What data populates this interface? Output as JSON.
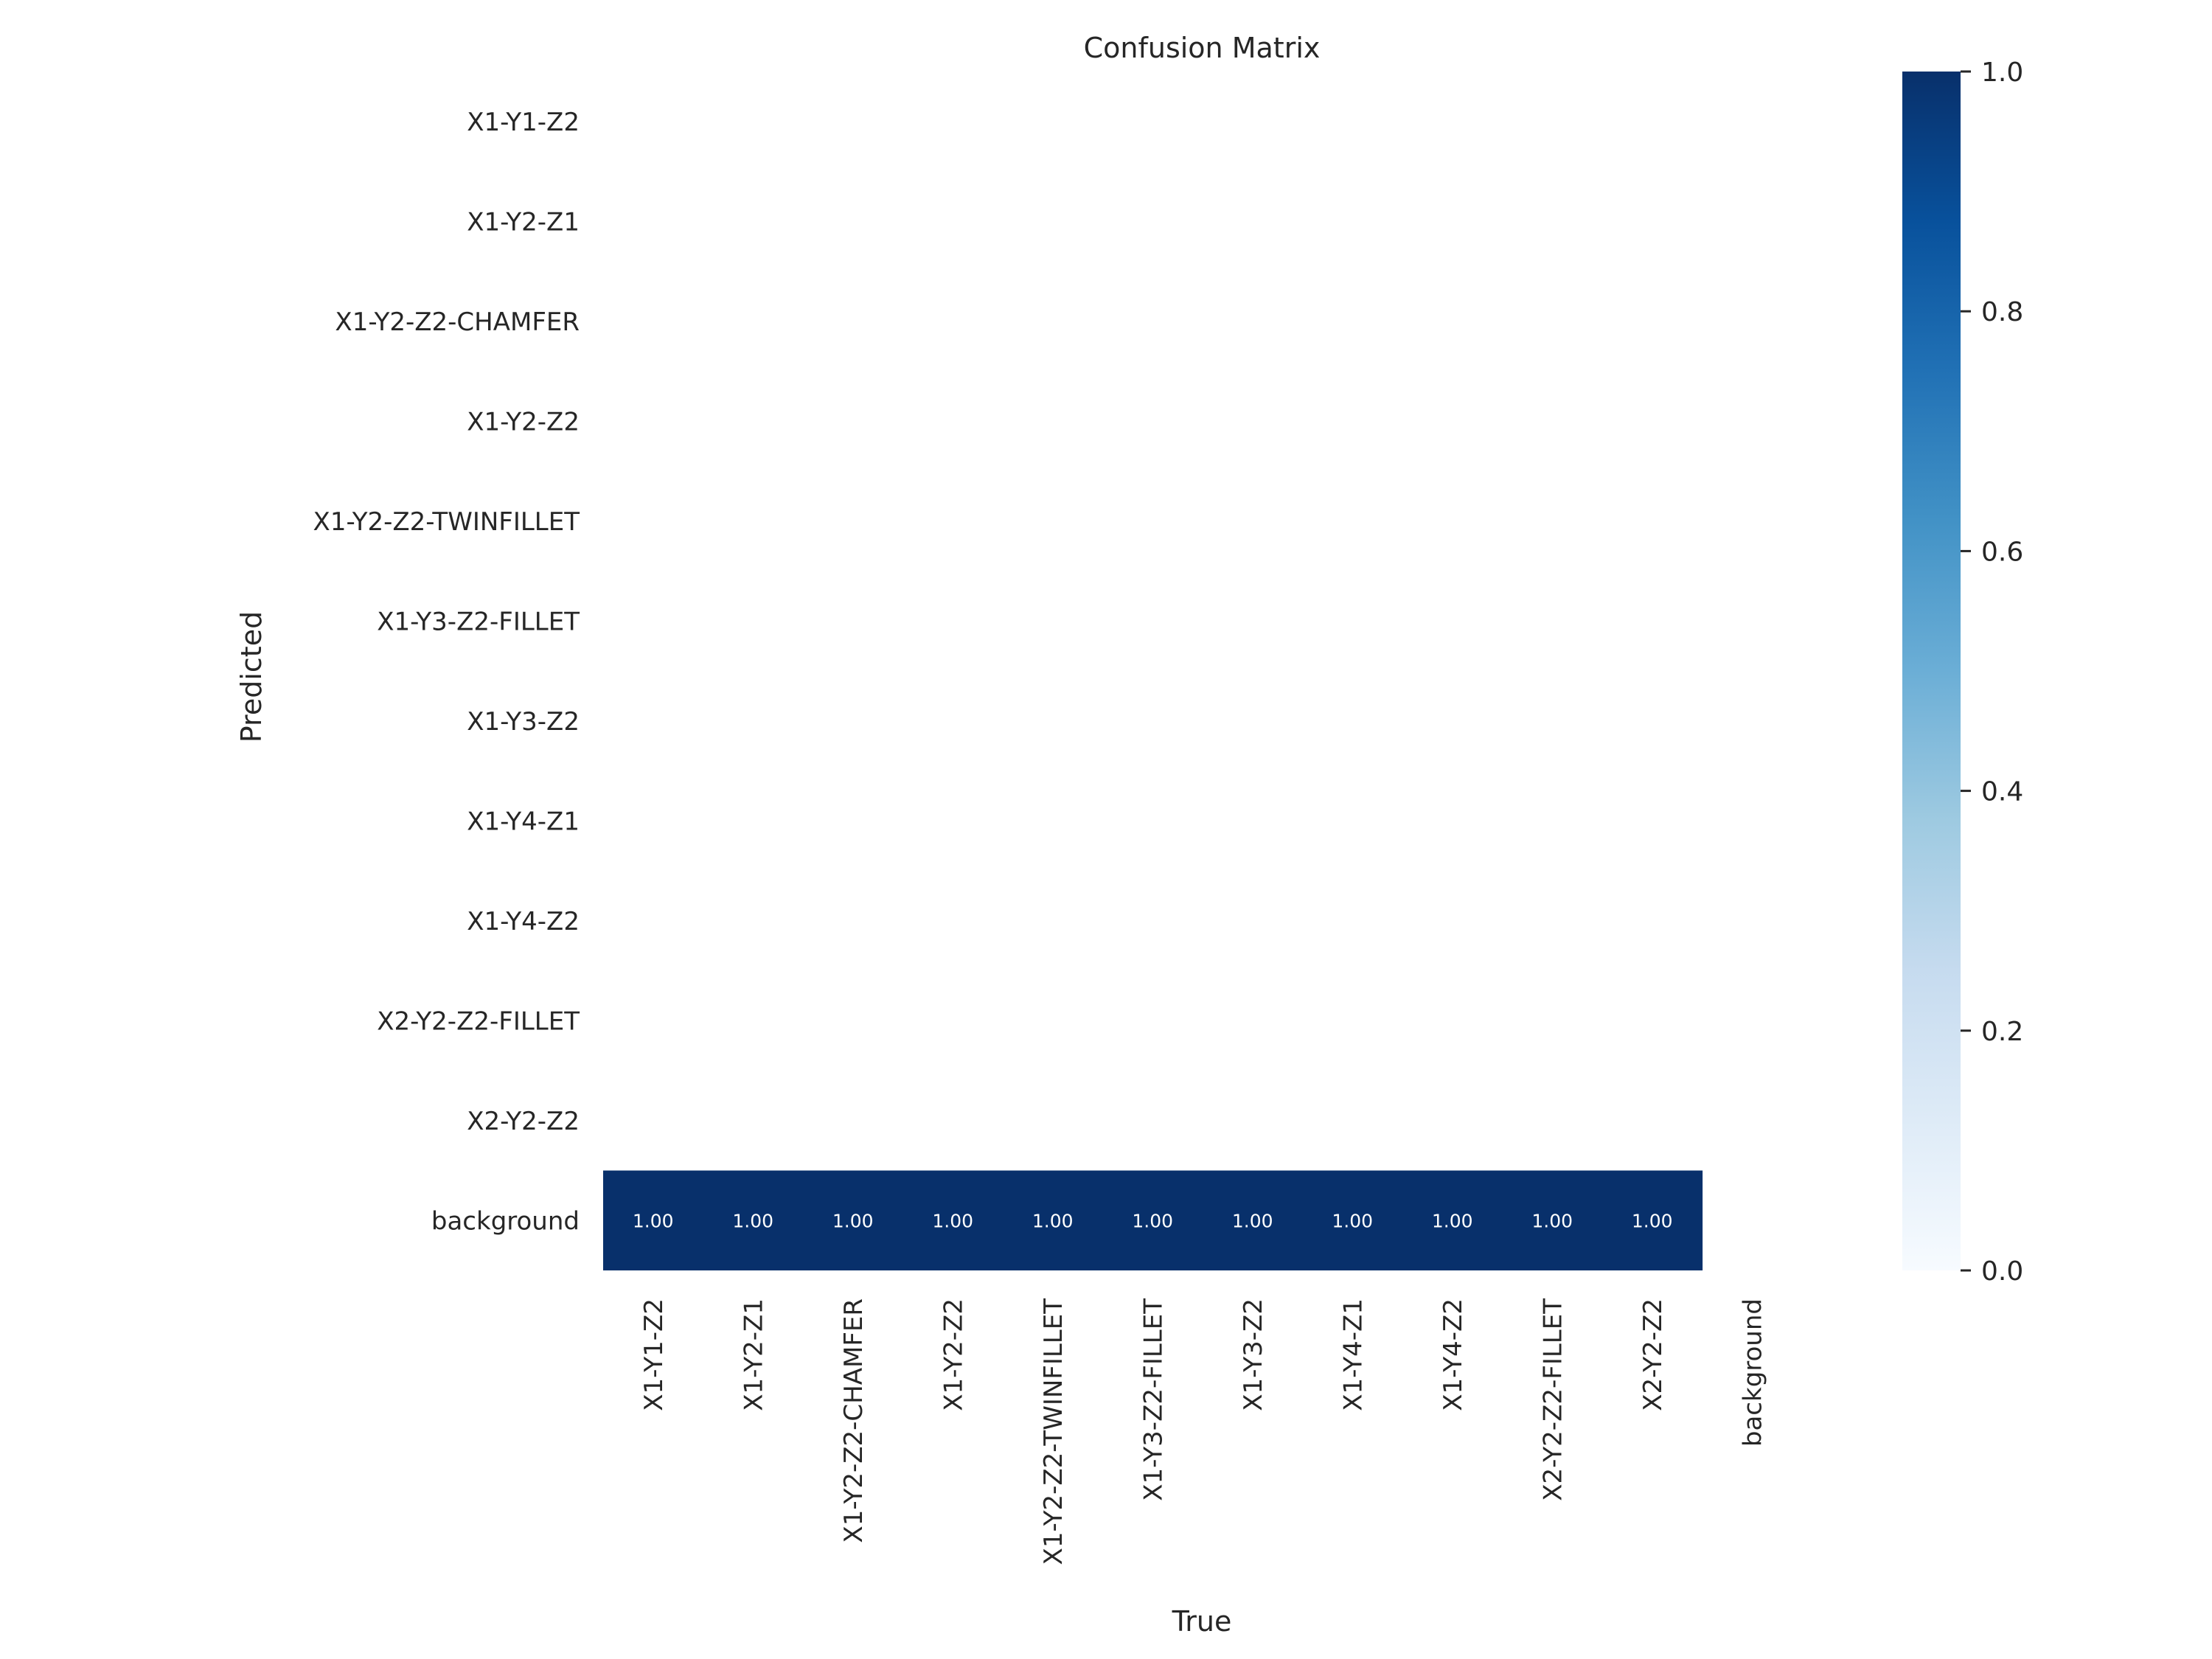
{
  "chart_data": {
    "type": "heatmap",
    "title": "Confusion Matrix",
    "xlabel": "True",
    "ylabel": "Predicted",
    "x_categories": [
      "X1-Y1-Z2",
      "X1-Y2-Z1",
      "X1-Y2-Z2-CHAMFER",
      "X1-Y2-Z2",
      "X1-Y2-Z2-TWINFILLET",
      "X1-Y3-Z2-FILLET",
      "X1-Y3-Z2",
      "X1-Y4-Z1",
      "X1-Y4-Z2",
      "X2-Y2-Z2-FILLET",
      "X2-Y2-Z2",
      "background"
    ],
    "y_categories": [
      "X1-Y1-Z2",
      "X1-Y2-Z1",
      "X1-Y2-Z2-CHAMFER",
      "X1-Y2-Z2",
      "X1-Y2-Z2-TWINFILLET",
      "X1-Y3-Z2-FILLET",
      "X1-Y3-Z2",
      "X1-Y4-Z1",
      "X1-Y4-Z2",
      "X2-Y2-Z2-FILLET",
      "X2-Y2-Z2",
      "background"
    ],
    "cells": [
      {
        "row": 11,
        "col": 0,
        "value": 1.0,
        "label": "1.00"
      },
      {
        "row": 11,
        "col": 1,
        "value": 1.0,
        "label": "1.00"
      },
      {
        "row": 11,
        "col": 2,
        "value": 1.0,
        "label": "1.00"
      },
      {
        "row": 11,
        "col": 3,
        "value": 1.0,
        "label": "1.00"
      },
      {
        "row": 11,
        "col": 4,
        "value": 1.0,
        "label": "1.00"
      },
      {
        "row": 11,
        "col": 5,
        "value": 1.0,
        "label": "1.00"
      },
      {
        "row": 11,
        "col": 6,
        "value": 1.0,
        "label": "1.00"
      },
      {
        "row": 11,
        "col": 7,
        "value": 1.0,
        "label": "1.00"
      },
      {
        "row": 11,
        "col": 8,
        "value": 1.0,
        "label": "1.00"
      },
      {
        "row": 11,
        "col": 9,
        "value": 1.0,
        "label": "1.00"
      },
      {
        "row": 11,
        "col": 10,
        "value": 1.0,
        "label": "1.00"
      }
    ],
    "colorbar": {
      "range": [
        0.0,
        1.0
      ],
      "ticks": [
        0.0,
        0.2,
        0.4,
        0.6,
        0.8,
        1.0
      ],
      "tick_labels": [
        "0.0",
        "0.2",
        "0.4",
        "0.6",
        "0.8",
        "1.0"
      ],
      "colormap": "Blues",
      "stops": [
        "#f7fbff",
        "#deebf7",
        "#c6dbef",
        "#9ecae1",
        "#6baed6",
        "#4292c6",
        "#2171b5",
        "#08519c",
        "#08306b"
      ]
    },
    "grid": false
  }
}
